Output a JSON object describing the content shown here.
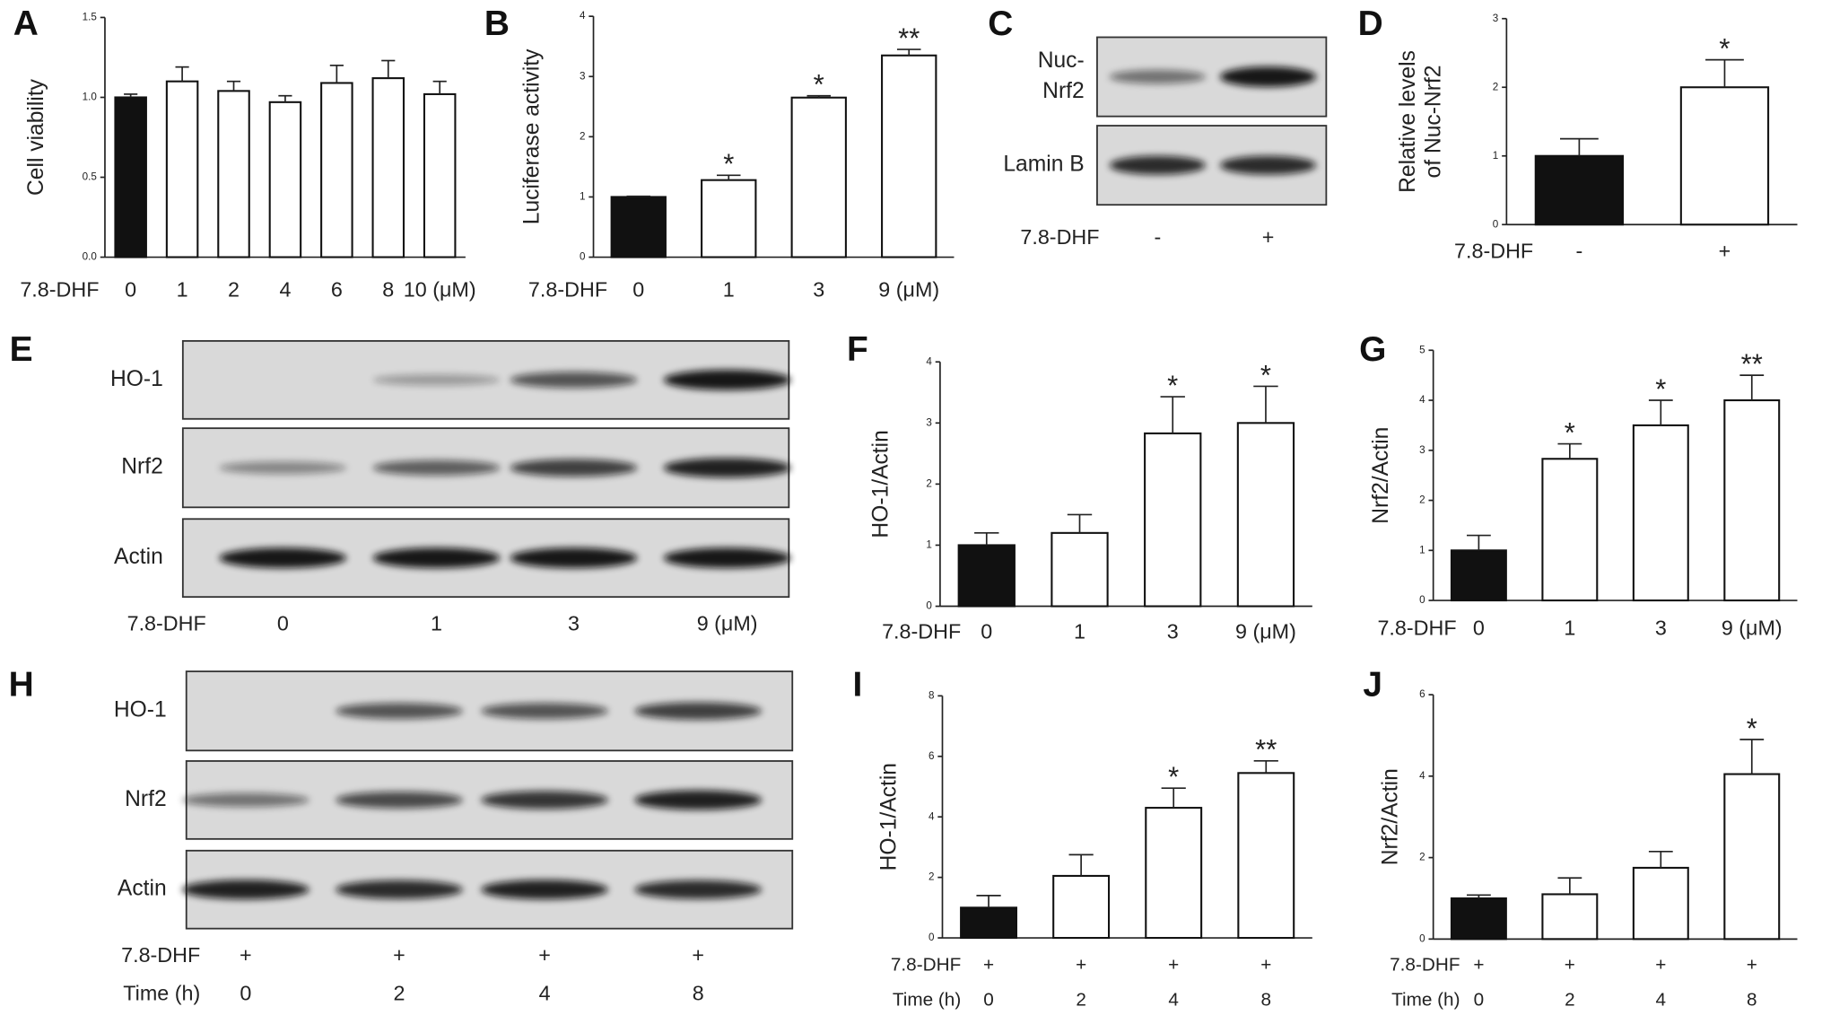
{
  "chart_data": [
    {
      "type": "bar",
      "panel": "A",
      "ylabel": [
        "Cell viability"
      ],
      "category_label": "7.8-DHF",
      "categories": [
        "0",
        "1",
        "2",
        "4",
        "6",
        "8",
        "10 (μM)"
      ],
      "values": [
        1.0,
        1.1,
        1.04,
        0.97,
        1.09,
        1.12,
        1.02
      ],
      "errors": [
        0.02,
        0.09,
        0.06,
        0.04,
        0.11,
        0.11,
        0.08
      ],
      "annotations": [
        null,
        null,
        null,
        null,
        null,
        null,
        null
      ],
      "colors": [
        "#111111",
        "#ffffff",
        "#ffffff",
        "#ffffff",
        "#ffffff",
        "#ffffff",
        "#ffffff"
      ],
      "ylim": [
        0,
        1.5
      ],
      "yticks": [
        {
          "value": 0,
          "label": "0.0"
        },
        {
          "value": 0.5,
          "label": "0.5"
        },
        {
          "value": 1,
          "label": "1.0"
        },
        {
          "value": 1.5,
          "label": "1.5"
        }
      ]
    },
    {
      "type": "bar",
      "panel": "B",
      "ylabel": [
        "Luciferase activity"
      ],
      "category_label": "7.8-DHF",
      "categories": [
        "0",
        "1",
        "3",
        "9  (μM)"
      ],
      "values": [
        1.0,
        1.28,
        2.65,
        3.35
      ],
      "errors": [
        0.01,
        0.08,
        0.03,
        0.1
      ],
      "annotations": [
        null,
        "*",
        "*",
        "**"
      ],
      "colors": [
        "#111111",
        "#ffffff",
        "#ffffff",
        "#ffffff"
      ],
      "ylim": [
        0,
        4
      ],
      "yticks": [
        0,
        1,
        2,
        3,
        4
      ]
    },
    {
      "type": "bar",
      "panel": "D",
      "ylabel": [
        "Relative levels",
        "of Nuc-Nrf2"
      ],
      "category_label": "7.8-DHF",
      "categories": [
        "-",
        "+"
      ],
      "values": [
        1.0,
        2.0
      ],
      "errors": [
        0.25,
        0.4
      ],
      "annotations": [
        null,
        "*"
      ],
      "colors": [
        "#111111",
        "#ffffff"
      ],
      "ylim": [
        0,
        3
      ],
      "yticks": [
        0,
        1,
        2,
        3
      ]
    },
    {
      "type": "bar",
      "panel": "F",
      "ylabel": [
        "HO-1/Actin"
      ],
      "category_label": "7.8-DHF",
      "categories": [
        "0",
        "1",
        "3",
        "9 (μM)"
      ],
      "values": [
        1.0,
        1.2,
        2.83,
        3.0
      ],
      "errors": [
        0.2,
        0.3,
        0.6,
        0.6
      ],
      "annotations": [
        null,
        null,
        "*",
        "*"
      ],
      "colors": [
        "#111111",
        "#ffffff",
        "#ffffff",
        "#ffffff"
      ],
      "ylim": [
        0,
        4
      ],
      "yticks": [
        0,
        1,
        2,
        3,
        4
      ]
    },
    {
      "type": "bar",
      "panel": "G",
      "ylabel": [
        "Nrf2/Actin"
      ],
      "category_label": "7.8-DHF",
      "categories": [
        "0",
        "1",
        "3",
        "9 (μM)"
      ],
      "values": [
        1.0,
        2.83,
        3.5,
        4.0
      ],
      "errors": [
        0.3,
        0.3,
        0.5,
        0.5
      ],
      "annotations": [
        null,
        "*",
        "*",
        "**"
      ],
      "colors": [
        "#111111",
        "#ffffff",
        "#ffffff",
        "#ffffff"
      ],
      "ylim": [
        0,
        5
      ],
      "yticks": [
        0,
        1,
        2,
        3,
        4,
        5
      ]
    },
    {
      "type": "bar",
      "panel": "I",
      "ylabel": [
        "HO-1/Actin"
      ],
      "category_label": "Time (h)",
      "categories": [
        "0",
        "2",
        "4",
        "8"
      ],
      "treatment_label": "7.8-DHF",
      "treatment": [
        "+",
        "+",
        "+",
        "+"
      ],
      "values": [
        1.0,
        2.05,
        4.3,
        5.45
      ],
      "errors": [
        0.4,
        0.7,
        0.65,
        0.4
      ],
      "annotations": [
        null,
        null,
        "*",
        "**"
      ],
      "colors": [
        "#111111",
        "#ffffff",
        "#ffffff",
        "#ffffff"
      ],
      "ylim": [
        0,
        8
      ],
      "yticks": [
        0,
        2,
        4,
        6,
        8
      ]
    },
    {
      "type": "bar",
      "panel": "J",
      "ylabel": [
        "Nrf2/Actin"
      ],
      "category_label": "Time (h)",
      "categories": [
        "0",
        "2",
        "4",
        "8"
      ],
      "treatment_label": "7.8-DHF",
      "treatment": [
        "+",
        "+",
        "+",
        "+"
      ],
      "values": [
        1.0,
        1.1,
        1.75,
        4.05
      ],
      "errors": [
        0.08,
        0.4,
        0.4,
        0.85
      ],
      "annotations": [
        null,
        null,
        null,
        "*"
      ],
      "colors": [
        "#111111",
        "#ffffff",
        "#ffffff",
        "#ffffff"
      ],
      "ylim": [
        0,
        6
      ],
      "yticks": [
        0,
        2,
        4,
        6
      ]
    }
  ],
  "blots": [
    {
      "panel": "C",
      "rows": [
        [
          "Nuc-",
          "Nrf2"
        ],
        [
          "Lamin B"
        ]
      ],
      "lanes": [
        {
          "label": "7.8-DHF",
          "values": [
            "-",
            "+"
          ]
        }
      ]
    },
    {
      "panel": "E",
      "rows": [
        [
          "HO-1"
        ],
        [
          "Nrf2"
        ],
        [
          "Actin"
        ]
      ],
      "lanes": [
        {
          "label": "7.8-DHF",
          "values": [
            "0",
            "1",
            "3",
            "9 (μM)"
          ]
        }
      ]
    },
    {
      "panel": "H",
      "rows": [
        [
          "HO-1"
        ],
        [
          "Nrf2"
        ],
        [
          "Actin"
        ]
      ],
      "lanes": [
        {
          "label": "7.8-DHF",
          "values": [
            "+",
            "+",
            "+",
            "+"
          ]
        },
        {
          "label": "Time (h)",
          "values": [
            "0",
            "2",
            "4",
            "8"
          ]
        }
      ]
    }
  ]
}
